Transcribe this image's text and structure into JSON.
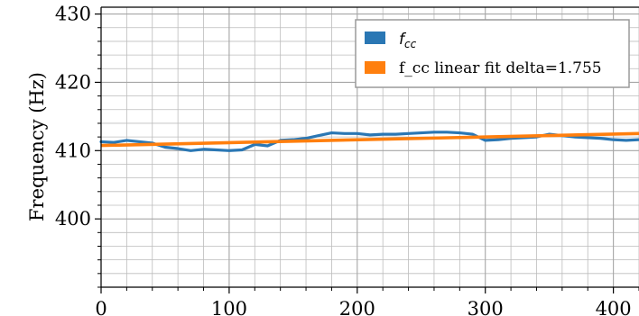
{
  "chart_data": {
    "type": "line",
    "title": "",
    "xlabel": "",
    "ylabel": "Frequency (Hz)",
    "xlim": [
      0,
      420
    ],
    "ylim": [
      390,
      431
    ],
    "grid": true,
    "legend_position": "top-right",
    "x_ticks": [
      0,
      100,
      200,
      300,
      400
    ],
    "y_ticks": [
      400,
      410,
      420,
      430
    ],
    "colors": {
      "measured": "#2a77b4",
      "fit": "#ff7f0e",
      "grid": "#bcbcbc"
    },
    "series": [
      {
        "name": "f_cc",
        "legend_main": "f",
        "legend_sub": "cc",
        "type": "line",
        "x": [
          0,
          10,
          20,
          30,
          40,
          50,
          60,
          70,
          80,
          90,
          100,
          110,
          120,
          130,
          140,
          150,
          160,
          170,
          180,
          190,
          200,
          210,
          220,
          230,
          240,
          250,
          260,
          270,
          280,
          290,
          300,
          310,
          320,
          330,
          340,
          350,
          360,
          370,
          380,
          390,
          400,
          410,
          420
        ],
        "values": [
          411.3,
          411.2,
          411.5,
          411.3,
          411.1,
          410.5,
          410.3,
          410.0,
          410.2,
          410.1,
          410.0,
          410.1,
          410.9,
          410.7,
          411.5,
          411.6,
          411.8,
          412.2,
          412.6,
          412.5,
          412.5,
          412.3,
          412.4,
          412.4,
          412.5,
          412.6,
          412.7,
          412.7,
          412.6,
          412.4,
          411.5,
          411.6,
          411.8,
          411.9,
          412.0,
          412.4,
          412.2,
          412.0,
          411.9,
          411.8,
          411.6,
          411.5,
          411.6
        ]
      },
      {
        "name": "f_cc linear fit delta=1.755",
        "type": "line",
        "x": [
          0,
          420
        ],
        "values": [
          410.75,
          412.5
        ]
      }
    ]
  }
}
